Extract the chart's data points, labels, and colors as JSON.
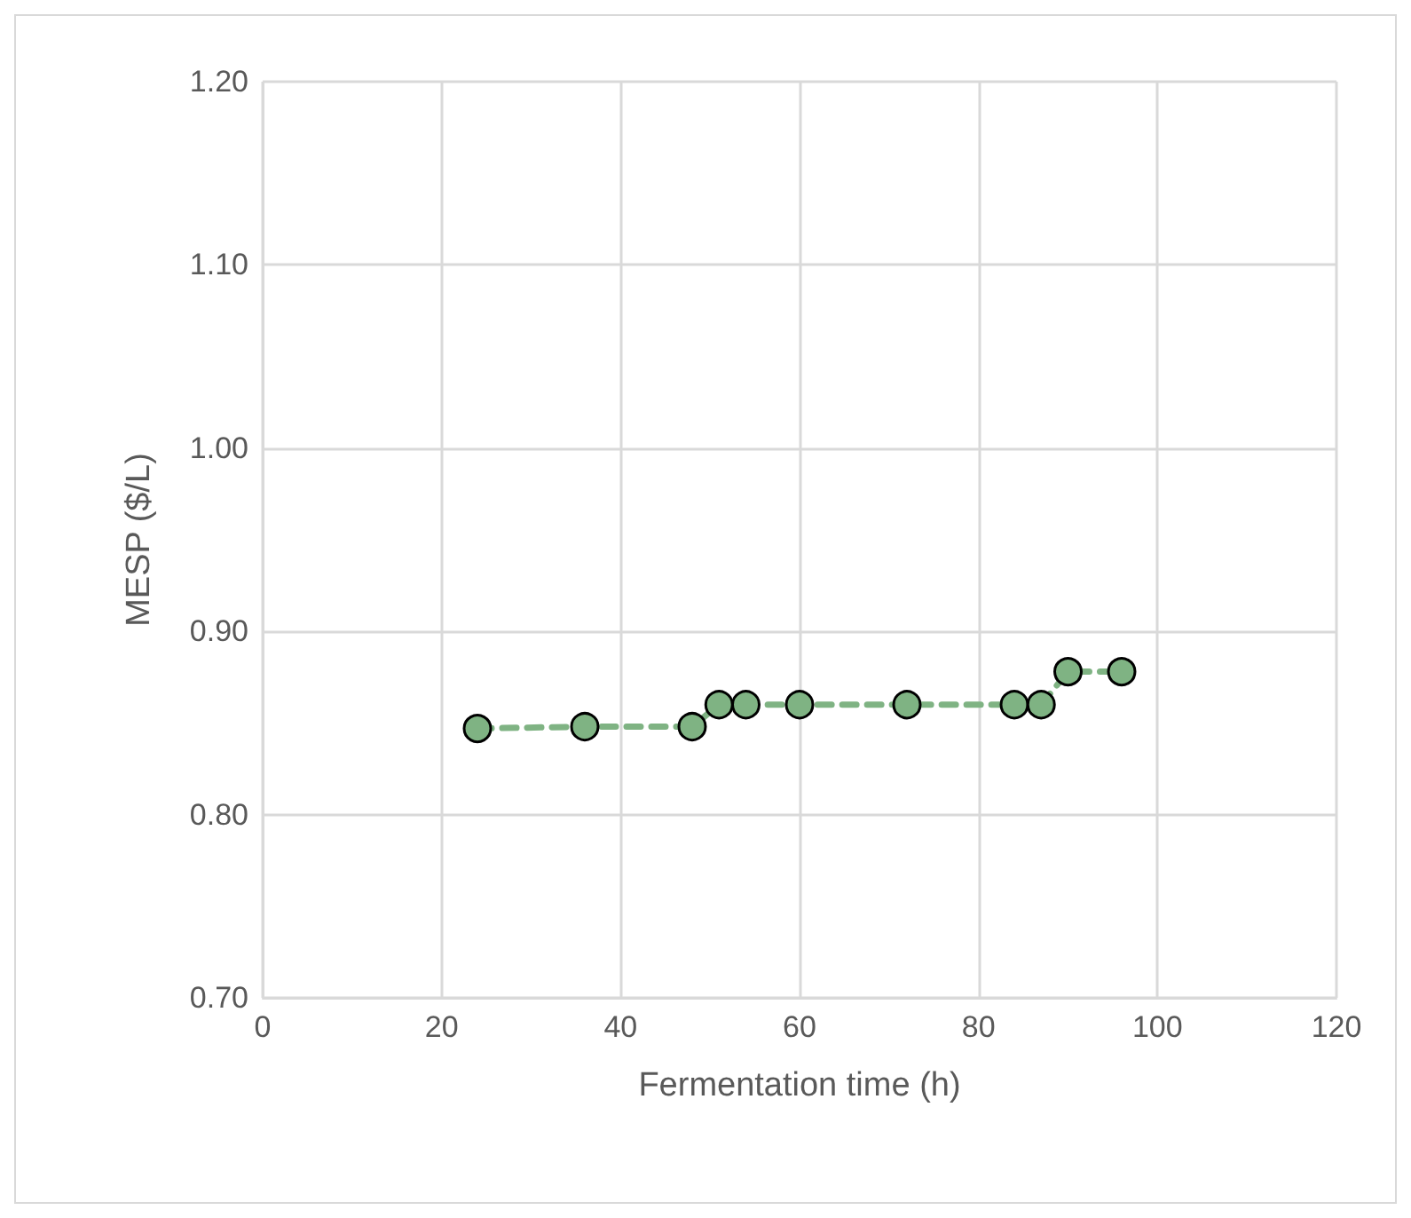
{
  "chart_data": {
    "type": "line",
    "xlabel": "Fermentation time (h)",
    "ylabel": "MESP ($/L)",
    "x": [
      24,
      36,
      48,
      51,
      54,
      60,
      72,
      84,
      87,
      90,
      96
    ],
    "series": [
      {
        "color": "#7fb383",
        "values": [
          0.847,
          0.848,
          0.848,
          0.86,
          0.86,
          0.86,
          0.86,
          0.86,
          0.86,
          0.878,
          0.878
        ]
      }
    ],
    "xlim": [
      0,
      120
    ],
    "xticks": [
      0,
      20,
      40,
      60,
      80,
      100,
      120
    ],
    "ylim": [
      0.7,
      1.2
    ],
    "yticks": [
      {
        "value": 0.7,
        "label": "0.70"
      },
      {
        "value": 0.8,
        "label": "0.80"
      },
      {
        "value": 0.9,
        "label": "0.90"
      },
      {
        "value": 1.0,
        "label": "1.00"
      },
      {
        "value": 1.1,
        "label": "1.10"
      },
      {
        "value": 1.2,
        "label": "1.20"
      }
    ],
    "grid": true,
    "marker": "circle",
    "line_style": "dashed"
  }
}
